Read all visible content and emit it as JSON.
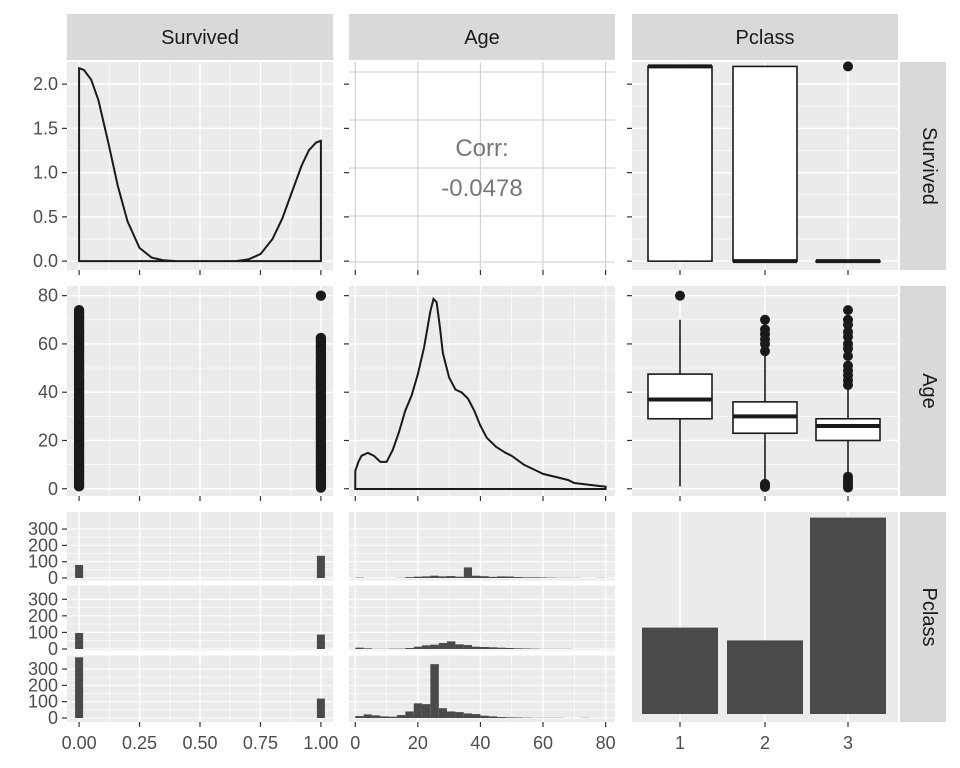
{
  "chart_data": {
    "type": "pairs",
    "variables": [
      "Survived",
      "Age",
      "Pclass"
    ],
    "strips": {
      "columns": [
        "Survived",
        "Age",
        "Pclass"
      ],
      "rows": [
        "Survived",
        "Age",
        "Pclass"
      ]
    },
    "colors": {
      "panel": "#ebebeb",
      "grid": "#ffffff",
      "strip": "#d9d9d9",
      "ink": "#1a1a1a",
      "bar": "#4a4a4a",
      "corr_text": "#777777",
      "tick_text": "#4d4d4d"
    },
    "axes": {
      "survived_x": {
        "ticks": [
          "0.00",
          "0.25",
          "0.50",
          "0.75",
          "1.00"
        ],
        "range": [
          -0.05,
          1.05
        ]
      },
      "age_x": {
        "ticks": [
          "0",
          "20",
          "40",
          "60",
          "80"
        ],
        "range": [
          -2,
          83
        ]
      },
      "pclass_x": {
        "ticks": [
          "1",
          "2",
          "3"
        ]
      },
      "survived_y": {
        "ticks": [
          "0.0",
          "0.5",
          "1.0",
          "1.5",
          "2.0"
        ],
        "range": [
          -0.1,
          2.25
        ]
      },
      "age_y": {
        "ticks": [
          "0",
          "20",
          "40",
          "60",
          "80"
        ],
        "range": [
          -3,
          84
        ]
      },
      "count_y": {
        "ticks": [
          "0",
          "100",
          "200",
          "300"
        ],
        "range": [
          0,
          380
        ]
      }
    },
    "panels": [
      {
        "id": "survived_density",
        "row": 1,
        "col": 1,
        "type": "density",
        "x": [
          0,
          0.02,
          0.05,
          0.08,
          0.12,
          0.16,
          0.2,
          0.25,
          0.3,
          0.35,
          0.4,
          0.45,
          0.5,
          0.55,
          0.6,
          0.65,
          0.7,
          0.75,
          0.8,
          0.84,
          0.88,
          0.92,
          0.95,
          0.98,
          1.0
        ],
        "y": [
          2.18,
          2.16,
          2.05,
          1.82,
          1.35,
          0.85,
          0.45,
          0.15,
          0.04,
          0.01,
          0.0,
          0.0,
          0.0,
          0.0,
          0.0,
          0.0,
          0.02,
          0.08,
          0.25,
          0.48,
          0.78,
          1.08,
          1.25,
          1.34,
          1.36
        ]
      },
      {
        "id": "survived_age_corr",
        "row": 1,
        "col": 2,
        "type": "text",
        "label": "Corr:",
        "value": "-0.0478"
      },
      {
        "id": "pclass_survived_box",
        "row": 1,
        "col": 3,
        "type": "boxplot",
        "boxes": [
          {
            "class": "1",
            "q1": 0,
            "median": 2.2,
            "q3": 2.2,
            "whisker_low": 0,
            "whisker_high": 2.2,
            "outliers": []
          },
          {
            "class": "2",
            "q1": 0,
            "median": 0,
            "q3": 2.2,
            "whisker_low": 0,
            "whisker_high": 2.2,
            "outliers": []
          },
          {
            "class": "3",
            "q1": 0,
            "median": 0,
            "q3": 0,
            "whisker_low": 0,
            "whisker_high": 0,
            "outliers": [
              2.2
            ]
          }
        ]
      },
      {
        "id": "survived_age_scatter",
        "row": 2,
        "col": 1,
        "type": "scatter",
        "groups": [
          {
            "x": 0,
            "range": [
              1,
              74
            ]
          },
          {
            "x": 1,
            "range": [
              0.5,
              63
            ],
            "outliers": [
              80
            ]
          }
        ]
      },
      {
        "id": "age_density",
        "row": 2,
        "col": 2,
        "type": "density",
        "x": [
          0,
          1,
          2,
          4,
          6,
          8,
          10,
          12,
          14,
          16,
          18,
          20,
          22,
          24,
          25,
          26,
          27,
          28,
          30,
          32,
          34,
          36,
          38,
          40,
          42,
          45,
          48,
          50,
          54,
          58,
          60,
          64,
          68,
          70,
          74,
          78,
          80
        ],
        "y": [
          0.006,
          0.009,
          0.011,
          0.012,
          0.011,
          0.009,
          0.009,
          0.013,
          0.019,
          0.026,
          0.031,
          0.038,
          0.047,
          0.059,
          0.063,
          0.062,
          0.054,
          0.045,
          0.037,
          0.033,
          0.032,
          0.03,
          0.026,
          0.021,
          0.017,
          0.014,
          0.012,
          0.011,
          0.008,
          0.006,
          0.005,
          0.004,
          0.003,
          0.002,
          0.0015,
          0.001,
          0.0008
        ]
      },
      {
        "id": "pclass_age_box",
        "row": 2,
        "col": 3,
        "type": "boxplot",
        "boxes": [
          {
            "class": "1",
            "q1": 29,
            "median": 37,
            "q3": 47.5,
            "whisker_low": 1,
            "whisker_high": 70,
            "outliers": [
              80
            ]
          },
          {
            "class": "2",
            "q1": 23,
            "median": 30,
            "q3": 36,
            "whisker_low": 3,
            "whisker_high": 55,
            "outliers": [
              57,
              60,
              62,
              64,
              66,
              70,
              2,
              1.5,
              1,
              0.8
            ]
          },
          {
            "class": "3",
            "q1": 20,
            "median": 26,
            "q3": 29,
            "whisker_low": 6,
            "whisker_high": 42,
            "outliers": [
              43,
              45,
              47,
              49,
              51,
              55,
              58,
              60,
              63,
              65,
              68,
              70,
              74,
              5,
              4,
              3,
              2,
              1,
              0.5
            ]
          }
        ]
      },
      {
        "id": "survived_pclass_hist",
        "row": 3,
        "col": 1,
        "type": "faceted_bar",
        "facets": [
          {
            "class": "1",
            "bars": [
              {
                "x": 0,
                "count": 80
              },
              {
                "x": 1,
                "count": 136
              }
            ]
          },
          {
            "class": "2",
            "bars": [
              {
                "x": 0,
                "count": 97
              },
              {
                "x": 1,
                "count": 87
              }
            ]
          },
          {
            "class": "3",
            "bars": [
              {
                "x": 0,
                "count": 372
              },
              {
                "x": 1,
                "count": 119
              }
            ]
          }
        ]
      },
      {
        "id": "age_pclass_hist",
        "row": 3,
        "col": 2,
        "type": "faceted_histogram",
        "bins": [
          0,
          2.7,
          5.3,
          8,
          10.7,
          13.3,
          16,
          18.7,
          21.3,
          24,
          26.7,
          29.3,
          32,
          34.7,
          37.3,
          40,
          42.7,
          45.3,
          48,
          50.7,
          53.3,
          56,
          58.7,
          61.3,
          64,
          66.7,
          69.3,
          72,
          74.7,
          77.3,
          80
        ],
        "facets": [
          {
            "class": "1",
            "counts": [
              2,
              0,
              0,
              0,
              0,
              1,
              5,
              8,
              10,
              14,
              10,
              12,
              8,
              65,
              14,
              11,
              7,
              10,
              9,
              6,
              4,
              4,
              3,
              2,
              1,
              1,
              1,
              0,
              0,
              1
            ]
          },
          {
            "class": "2",
            "counts": [
              8,
              4,
              1,
              1,
              2,
              2,
              6,
              14,
              22,
              26,
              36,
              46,
              28,
              24,
              14,
              12,
              10,
              8,
              6,
              4,
              3,
              2,
              1,
              1,
              1,
              1,
              0,
              0,
              0,
              0
            ]
          },
          {
            "class": "3",
            "counts": [
              12,
              22,
              16,
              10,
              8,
              18,
              40,
              90,
              85,
              330,
              60,
              40,
              36,
              28,
              24,
              14,
              10,
              6,
              4,
              3,
              2,
              1,
              1,
              1,
              1,
              0,
              0,
              1,
              0,
              0
            ]
          }
        ]
      },
      {
        "id": "pclass_bar",
        "row": 3,
        "col": 3,
        "type": "bar",
        "categories": [
          "1",
          "2",
          "3"
        ],
        "values": [
          216,
          184,
          491
        ]
      }
    ]
  }
}
